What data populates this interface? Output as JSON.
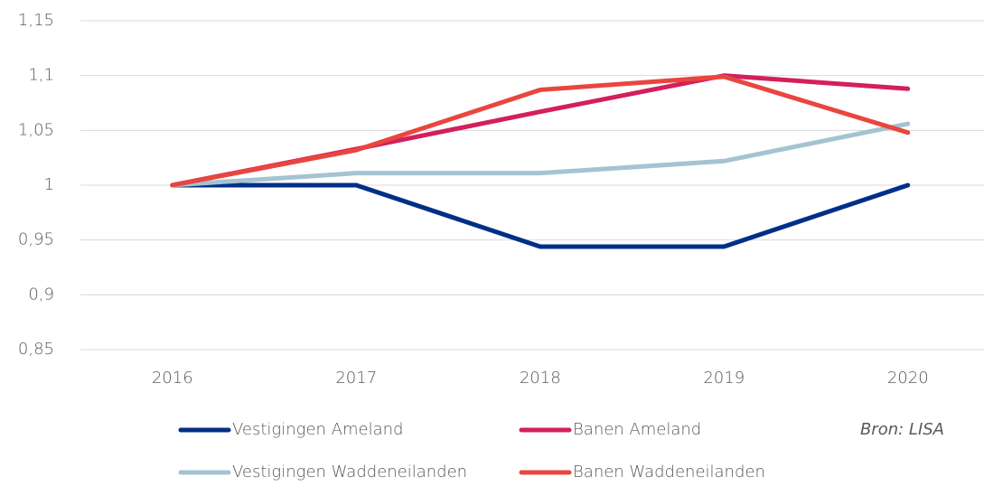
{
  "chart_data": {
    "type": "line",
    "categories": [
      "2016",
      "2017",
      "2018",
      "2019",
      "2020"
    ],
    "series": [
      {
        "name": "Vestigingen Ameland",
        "color": "#002f87",
        "values": [
          1,
          1,
          0.944,
          0.944,
          1
        ]
      },
      {
        "name": "Banen Ameland",
        "color": "#d41f5c",
        "values": [
          1,
          1.033,
          1.067,
          1.1,
          1.088
        ]
      },
      {
        "name": "Vestigingen Waddeneilanden",
        "color": "#a4c3d3",
        "values": [
          1,
          1.011,
          1.011,
          1.022,
          1.056
        ]
      },
      {
        "name": "Banen Waddeneilanden",
        "color": "#e8463e",
        "values": [
          1,
          1.032,
          1.087,
          1.099,
          1.048
        ]
      }
    ],
    "ylim": [
      0.85,
      1.15
    ],
    "yticks": [
      {
        "value": 0.85,
        "label": "0,85"
      },
      {
        "value": 0.9,
        "label": "0,9"
      },
      {
        "value": 0.95,
        "label": "0,95"
      },
      1,
      {
        "value": 1.05,
        "label": "1,05"
      },
      {
        "value": 1.1,
        "label": "1,1"
      },
      {
        "value": 1.15,
        "label": "1,15"
      }
    ],
    "grid": true,
    "legend": "bottom",
    "annotation": "Bron: LISA"
  }
}
